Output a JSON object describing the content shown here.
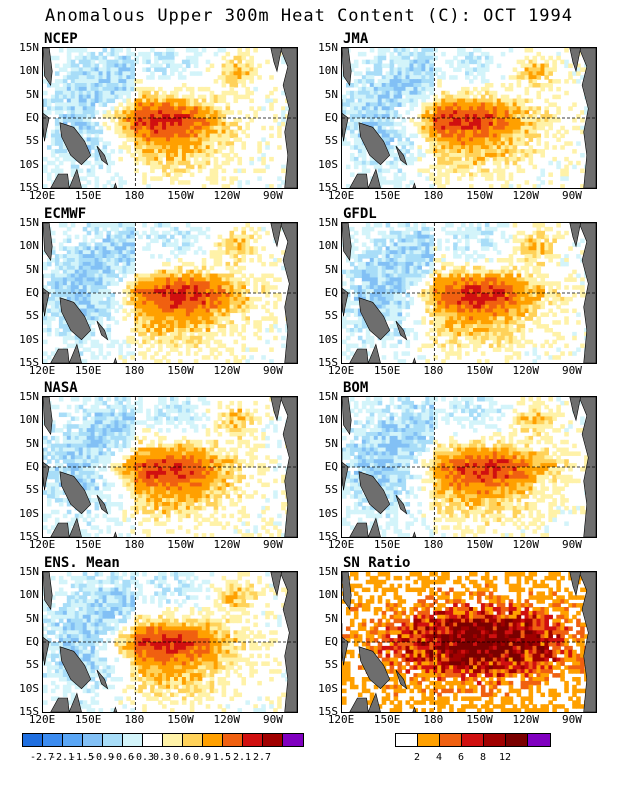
{
  "title": "Anomalous Upper 300m Heat Content (C): OCT 1994",
  "y_ticks": [
    "15N",
    "10N",
    "5N",
    "EQ",
    "5S",
    "10S",
    "15S"
  ],
  "x_ticks": [
    "120E",
    "150E",
    "180",
    "150W",
    "120W",
    "90W"
  ],
  "land_color": "#6e6e6e",
  "panels": [
    {
      "label": "NCEP",
      "kind": "anom",
      "warm_center": 165
    },
    {
      "label": "JMA",
      "kind": "anom",
      "warm_center": 160
    },
    {
      "label": "ECMWF",
      "kind": "anom",
      "warm_center": 150
    },
    {
      "label": "GFDL",
      "kind": "anom",
      "warm_center": 150
    },
    {
      "label": "NASA",
      "kind": "anom",
      "warm_center": 160
    },
    {
      "label": "BOM",
      "kind": "anom",
      "warm_center": 145
    },
    {
      "label": "ENS. Mean",
      "kind": "anom",
      "warm_center": 160
    },
    {
      "label": "SN Ratio",
      "kind": "snr",
      "warm_center": 150
    }
  ],
  "colorbar_anom": {
    "colors": [
      "#1f6fe0",
      "#3c8cf0",
      "#5aa6f5",
      "#82c0f5",
      "#a8ddf8",
      "#d3f4fa",
      "#ffffff",
      "#fff2a8",
      "#ffd25a",
      "#ffa000",
      "#f06010",
      "#d01010",
      "#a00000",
      "#8000c0"
    ],
    "labels": [
      "-2.7",
      "-2.1",
      "-1.5",
      "-0.9",
      "-0.6",
      "-0.3",
      "0.3",
      "0.6",
      "0.9",
      "1.5",
      "2.1",
      "2.7"
    ]
  },
  "colorbar_snr": {
    "colors": [
      "#ffffff",
      "#ffa000",
      "#f06010",
      "#d01010",
      "#a00000",
      "#7a0000",
      "#8000c0"
    ],
    "labels": [
      "2",
      "4",
      "6",
      "8",
      "12"
    ]
  }
}
